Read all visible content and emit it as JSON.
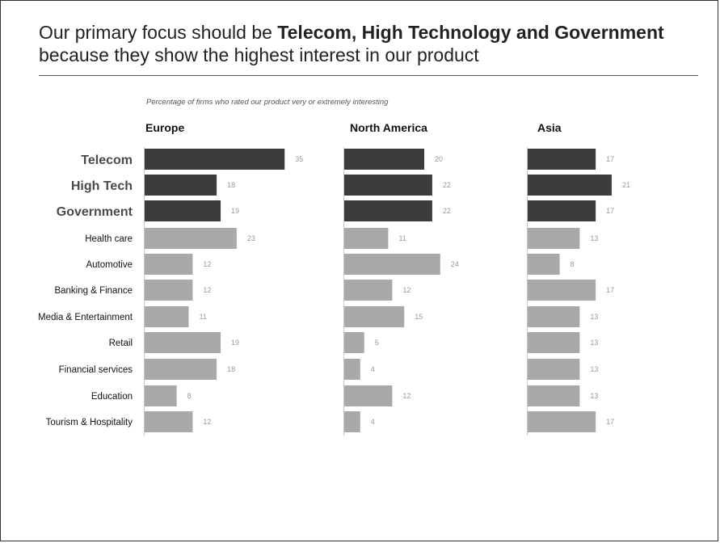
{
  "title": {
    "part1": "Our primary focus should be ",
    "bold": "Telecom, High Technology and Government",
    "part2": "because they show the highest interest in our product"
  },
  "chart_data": {
    "type": "bar",
    "orientation": "horizontal",
    "subtitle": "Percentage of firms who rated our product very or extremely interesting",
    "categories": [
      "Telecom",
      "High Tech",
      "Government",
      "Health care",
      "Automotive",
      "Banking & Finance",
      "Media & Entertainment",
      "Retail",
      "Financial services",
      "Education",
      "Tourism & Hospitality"
    ],
    "highlighted_categories": [
      "Telecom",
      "High Tech",
      "Government"
    ],
    "colors": {
      "highlight": "#3c3c3c",
      "other": "#a9a9a9",
      "value_label": "#999999"
    },
    "panels": [
      {
        "name": "Europe",
        "values": [
          35,
          18,
          19,
          23,
          12,
          12,
          11,
          19,
          18,
          8,
          12
        ]
      },
      {
        "name": "North America",
        "values": [
          20,
          22,
          22,
          11,
          24,
          12,
          15,
          5,
          4,
          12,
          4
        ]
      },
      {
        "name": "Asia",
        "values": [
          17,
          21,
          17,
          13,
          8,
          17,
          13,
          13,
          13,
          13,
          17
        ]
      }
    ]
  }
}
